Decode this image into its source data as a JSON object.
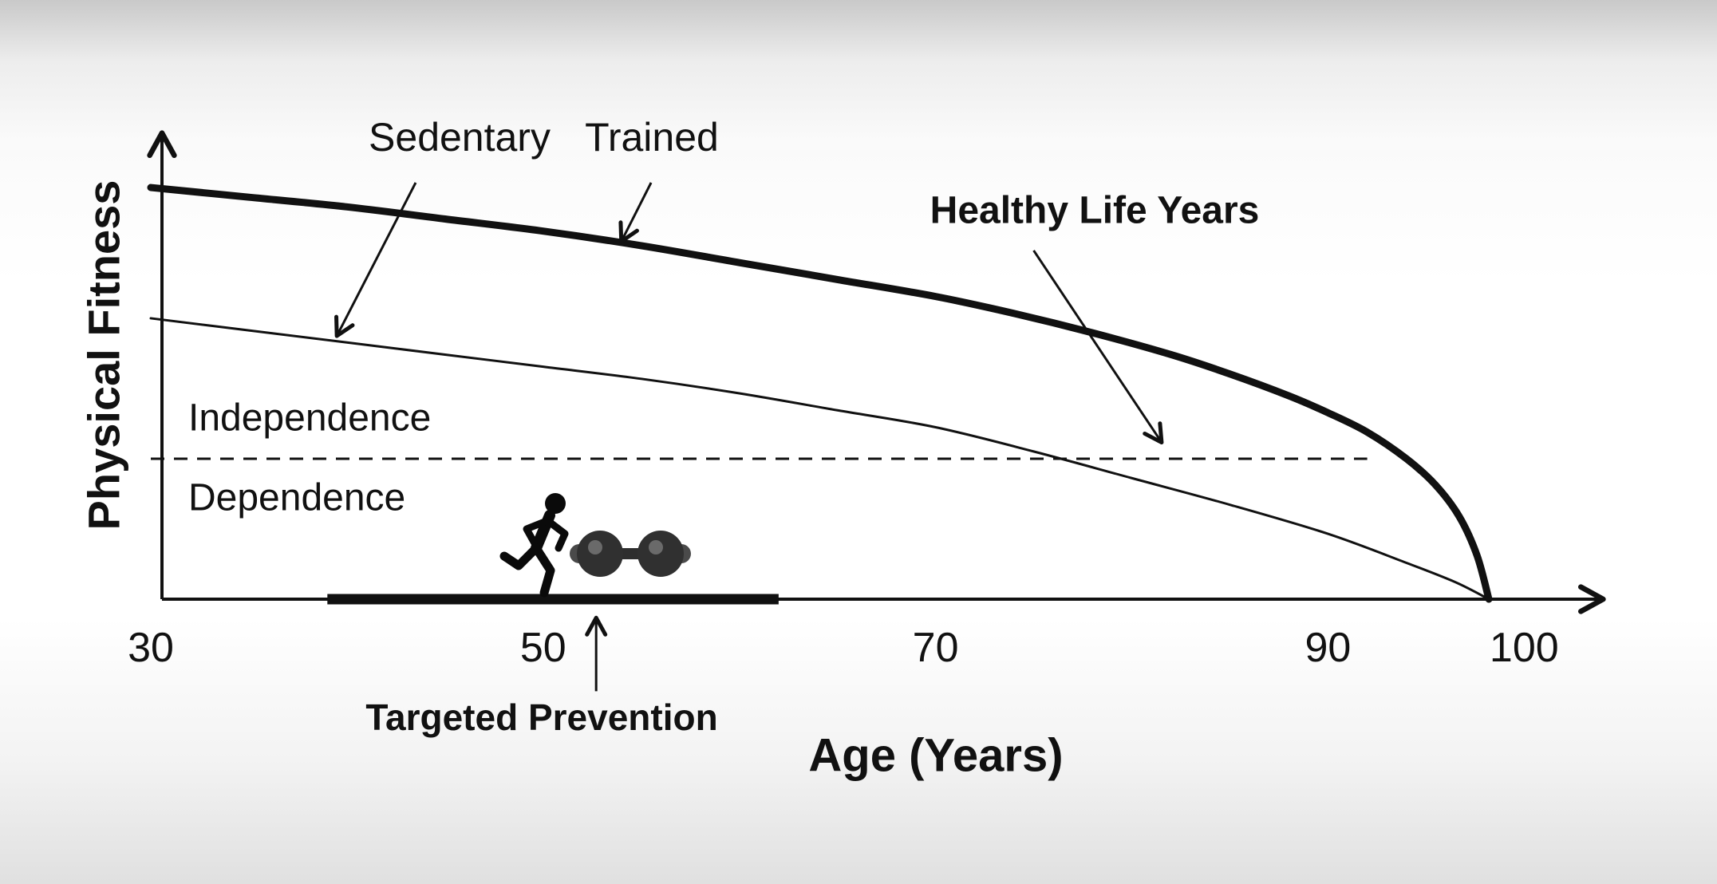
{
  "chart_data": {
    "type": "line",
    "title": "",
    "xlabel": "Age (Years)",
    "ylabel": "Physical Fitness",
    "xlim": [
      30,
      105
    ],
    "ylim": [
      0,
      100
    ],
    "x_ticks": [
      30,
      50,
      70,
      90,
      100
    ],
    "y_ticks": [],
    "grid": false,
    "legend_position": "none",
    "series": [
      {
        "name": "Trained",
        "line_weight": "thick",
        "points": [
          [
            30,
            85
          ],
          [
            35,
            83
          ],
          [
            40,
            81
          ],
          [
            45,
            78.5
          ],
          [
            50,
            76
          ],
          [
            55,
            73
          ],
          [
            60,
            69.5
          ],
          [
            65,
            66
          ],
          [
            70,
            62.5
          ],
          [
            74,
            59
          ],
          [
            78,
            55
          ],
          [
            82,
            50.5
          ],
          [
            85,
            46.5
          ],
          [
            88,
            42
          ],
          [
            90,
            38.5
          ],
          [
            92,
            34.5
          ],
          [
            94,
            29
          ],
          [
            95.5,
            23.5
          ],
          [
            96.7,
            17
          ],
          [
            97.6,
            9
          ],
          [
            98.2,
            0
          ]
        ]
      },
      {
        "name": "Sedentary",
        "line_weight": "thin",
        "points": [
          [
            30,
            58
          ],
          [
            35,
            55.5
          ],
          [
            40,
            53
          ],
          [
            45,
            50.5
          ],
          [
            50,
            48
          ],
          [
            55,
            45.5
          ],
          [
            60,
            42.5
          ],
          [
            65,
            39
          ],
          [
            70,
            35.5
          ],
          [
            75,
            30.5
          ],
          [
            80,
            25
          ],
          [
            85,
            19.5
          ],
          [
            90,
            13.5
          ],
          [
            94,
            7.5
          ],
          [
            96.5,
            3.5
          ],
          [
            98.2,
            0
          ]
        ]
      }
    ],
    "threshold_line": {
      "y": 29,
      "x_start": 30,
      "x_end": 92,
      "style": "dashed",
      "label_above": "Independence",
      "label_below": "Dependence"
    },
    "intervention_bar": {
      "x_start": 39,
      "x_end": 62,
      "y": 0,
      "label": "Targeted Prevention",
      "arrow_from_xy": [
        52.7,
        -19
      ],
      "arrow_to_xy": [
        52.7,
        -4
      ]
    },
    "annotations": [
      {
        "text": "Sedentary",
        "bold": false,
        "arrow_from_xy": [
          43.5,
          86
        ],
        "arrow_to_xy": [
          39.5,
          54.5
        ]
      },
      {
        "text": "Trained",
        "bold": false,
        "arrow_from_xy": [
          55.5,
          86
        ],
        "arrow_to_xy": [
          54,
          74
        ]
      },
      {
        "text": "Healthy Life Years",
        "bold": true,
        "arrow_from_xy": [
          75,
          72
        ],
        "arrow_to_xy": [
          81.5,
          32.5
        ]
      }
    ]
  },
  "icons": [
    {
      "name": "runner-icon",
      "depicts": "running person silhouette"
    },
    {
      "name": "dumbbell-icon",
      "depicts": "dumbbell weights"
    }
  ],
  "colors": {
    "ink": "#111111",
    "background_top": "#c9c9c9",
    "background_middle": "#ffffff",
    "background_bottom": "#e0e0e0"
  }
}
